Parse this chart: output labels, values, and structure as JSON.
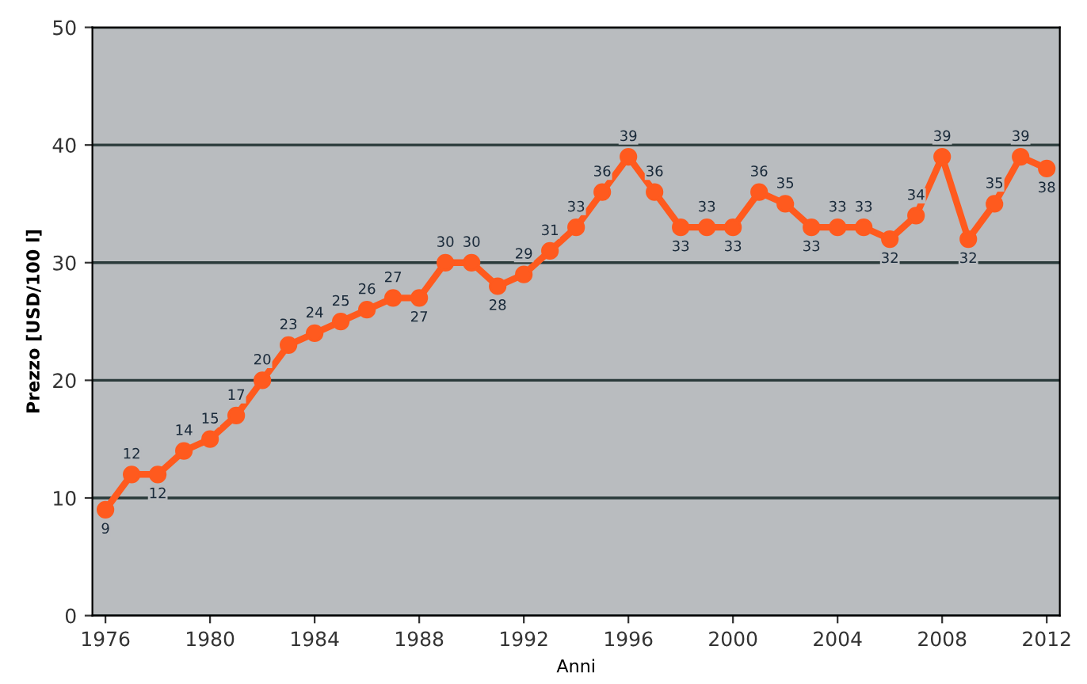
{
  "chart_data": {
    "type": "line",
    "xlabel": "Anni",
    "ylabel": "Prezzo [USD/100 l]",
    "x": [
      1976,
      1977,
      1978,
      1979,
      1980,
      1981,
      1982,
      1983,
      1984,
      1985,
      1986,
      1987,
      1988,
      1989,
      1990,
      1991,
      1992,
      1993,
      1994,
      1995,
      1996,
      1997,
      1998,
      1999,
      2000,
      2001,
      2002,
      2003,
      2004,
      2005,
      2006,
      2007,
      2008,
      2009,
      2010,
      2011,
      2012
    ],
    "series": [
      {
        "color": "#ff5a1e",
        "values": [
          9,
          12,
          12,
          14,
          15,
          17,
          20,
          23,
          24,
          25,
          26,
          27,
          27,
          30,
          30,
          28,
          29,
          31,
          33,
          36,
          39,
          36,
          33,
          33,
          33,
          36,
          35,
          33,
          33,
          33,
          32,
          34,
          39,
          32,
          35,
          39,
          38
        ]
      }
    ],
    "xlim": [
      1975.5,
      2012.5
    ],
    "xticks": [
      1976,
      1980,
      1984,
      1988,
      1992,
      1996,
      2000,
      2004,
      2008,
      2012
    ],
    "ylim": [
      0,
      50
    ],
    "yticks": [
      0,
      10,
      20,
      30,
      40,
      50
    ],
    "grid": "y",
    "marker": "circle",
    "line_style": "solid",
    "data_labels": true,
    "legend": false
  }
}
